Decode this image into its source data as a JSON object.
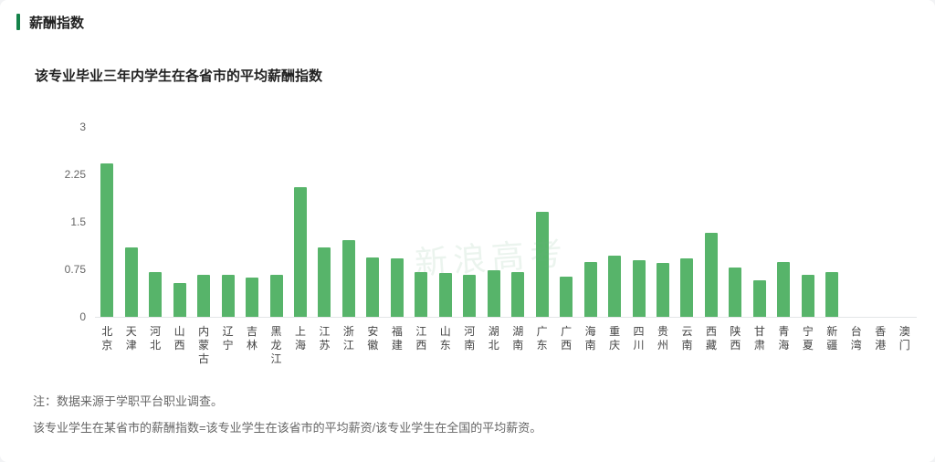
{
  "header": {
    "title": "薪酬指数"
  },
  "chart_data": {
    "type": "bar",
    "title": "该专业毕业三年内学生在各省市的平均薪酬指数",
    "categories": [
      "北京",
      "天津",
      "河北",
      "山西",
      "内蒙古",
      "辽宁",
      "吉林",
      "黑龙江",
      "上海",
      "江苏",
      "浙江",
      "安徽",
      "福建",
      "江西",
      "山东",
      "河南",
      "湖北",
      "湖南",
      "广东",
      "广西",
      "海南",
      "重庆",
      "四川",
      "贵州",
      "云南",
      "西藏",
      "陕西",
      "甘肃",
      "青海",
      "宁夏",
      "新疆",
      "台湾",
      "香港",
      "澳门"
    ],
    "values": [
      2.42,
      1.1,
      0.7,
      0.53,
      0.67,
      0.66,
      0.62,
      0.67,
      2.05,
      1.1,
      1.21,
      0.94,
      0.93,
      0.71,
      0.69,
      0.66,
      0.73,
      0.71,
      1.66,
      0.63,
      0.87,
      0.97,
      0.9,
      0.85,
      0.92,
      1.32,
      0.78,
      0.57,
      0.86,
      0.67,
      0.71,
      0,
      0,
      0
    ],
    "xlabel": "",
    "ylabel": "",
    "ylim": [
      0,
      3
    ],
    "yticks": [
      0,
      0.75,
      1.5,
      2.25,
      3
    ],
    "grid": false,
    "legend": false
  },
  "watermark": "新浪高考",
  "notes": [
    "注：数据来源于学职平台职业调查。",
    "该专业学生在某省市的薪酬指数=该专业学生在该省市的平均薪资/该专业学生在全国的平均薪资。"
  ],
  "colors": {
    "accent": "#15834a",
    "bar": "#57b46a",
    "axis_text": "#666666",
    "note_text": "#666666"
  }
}
